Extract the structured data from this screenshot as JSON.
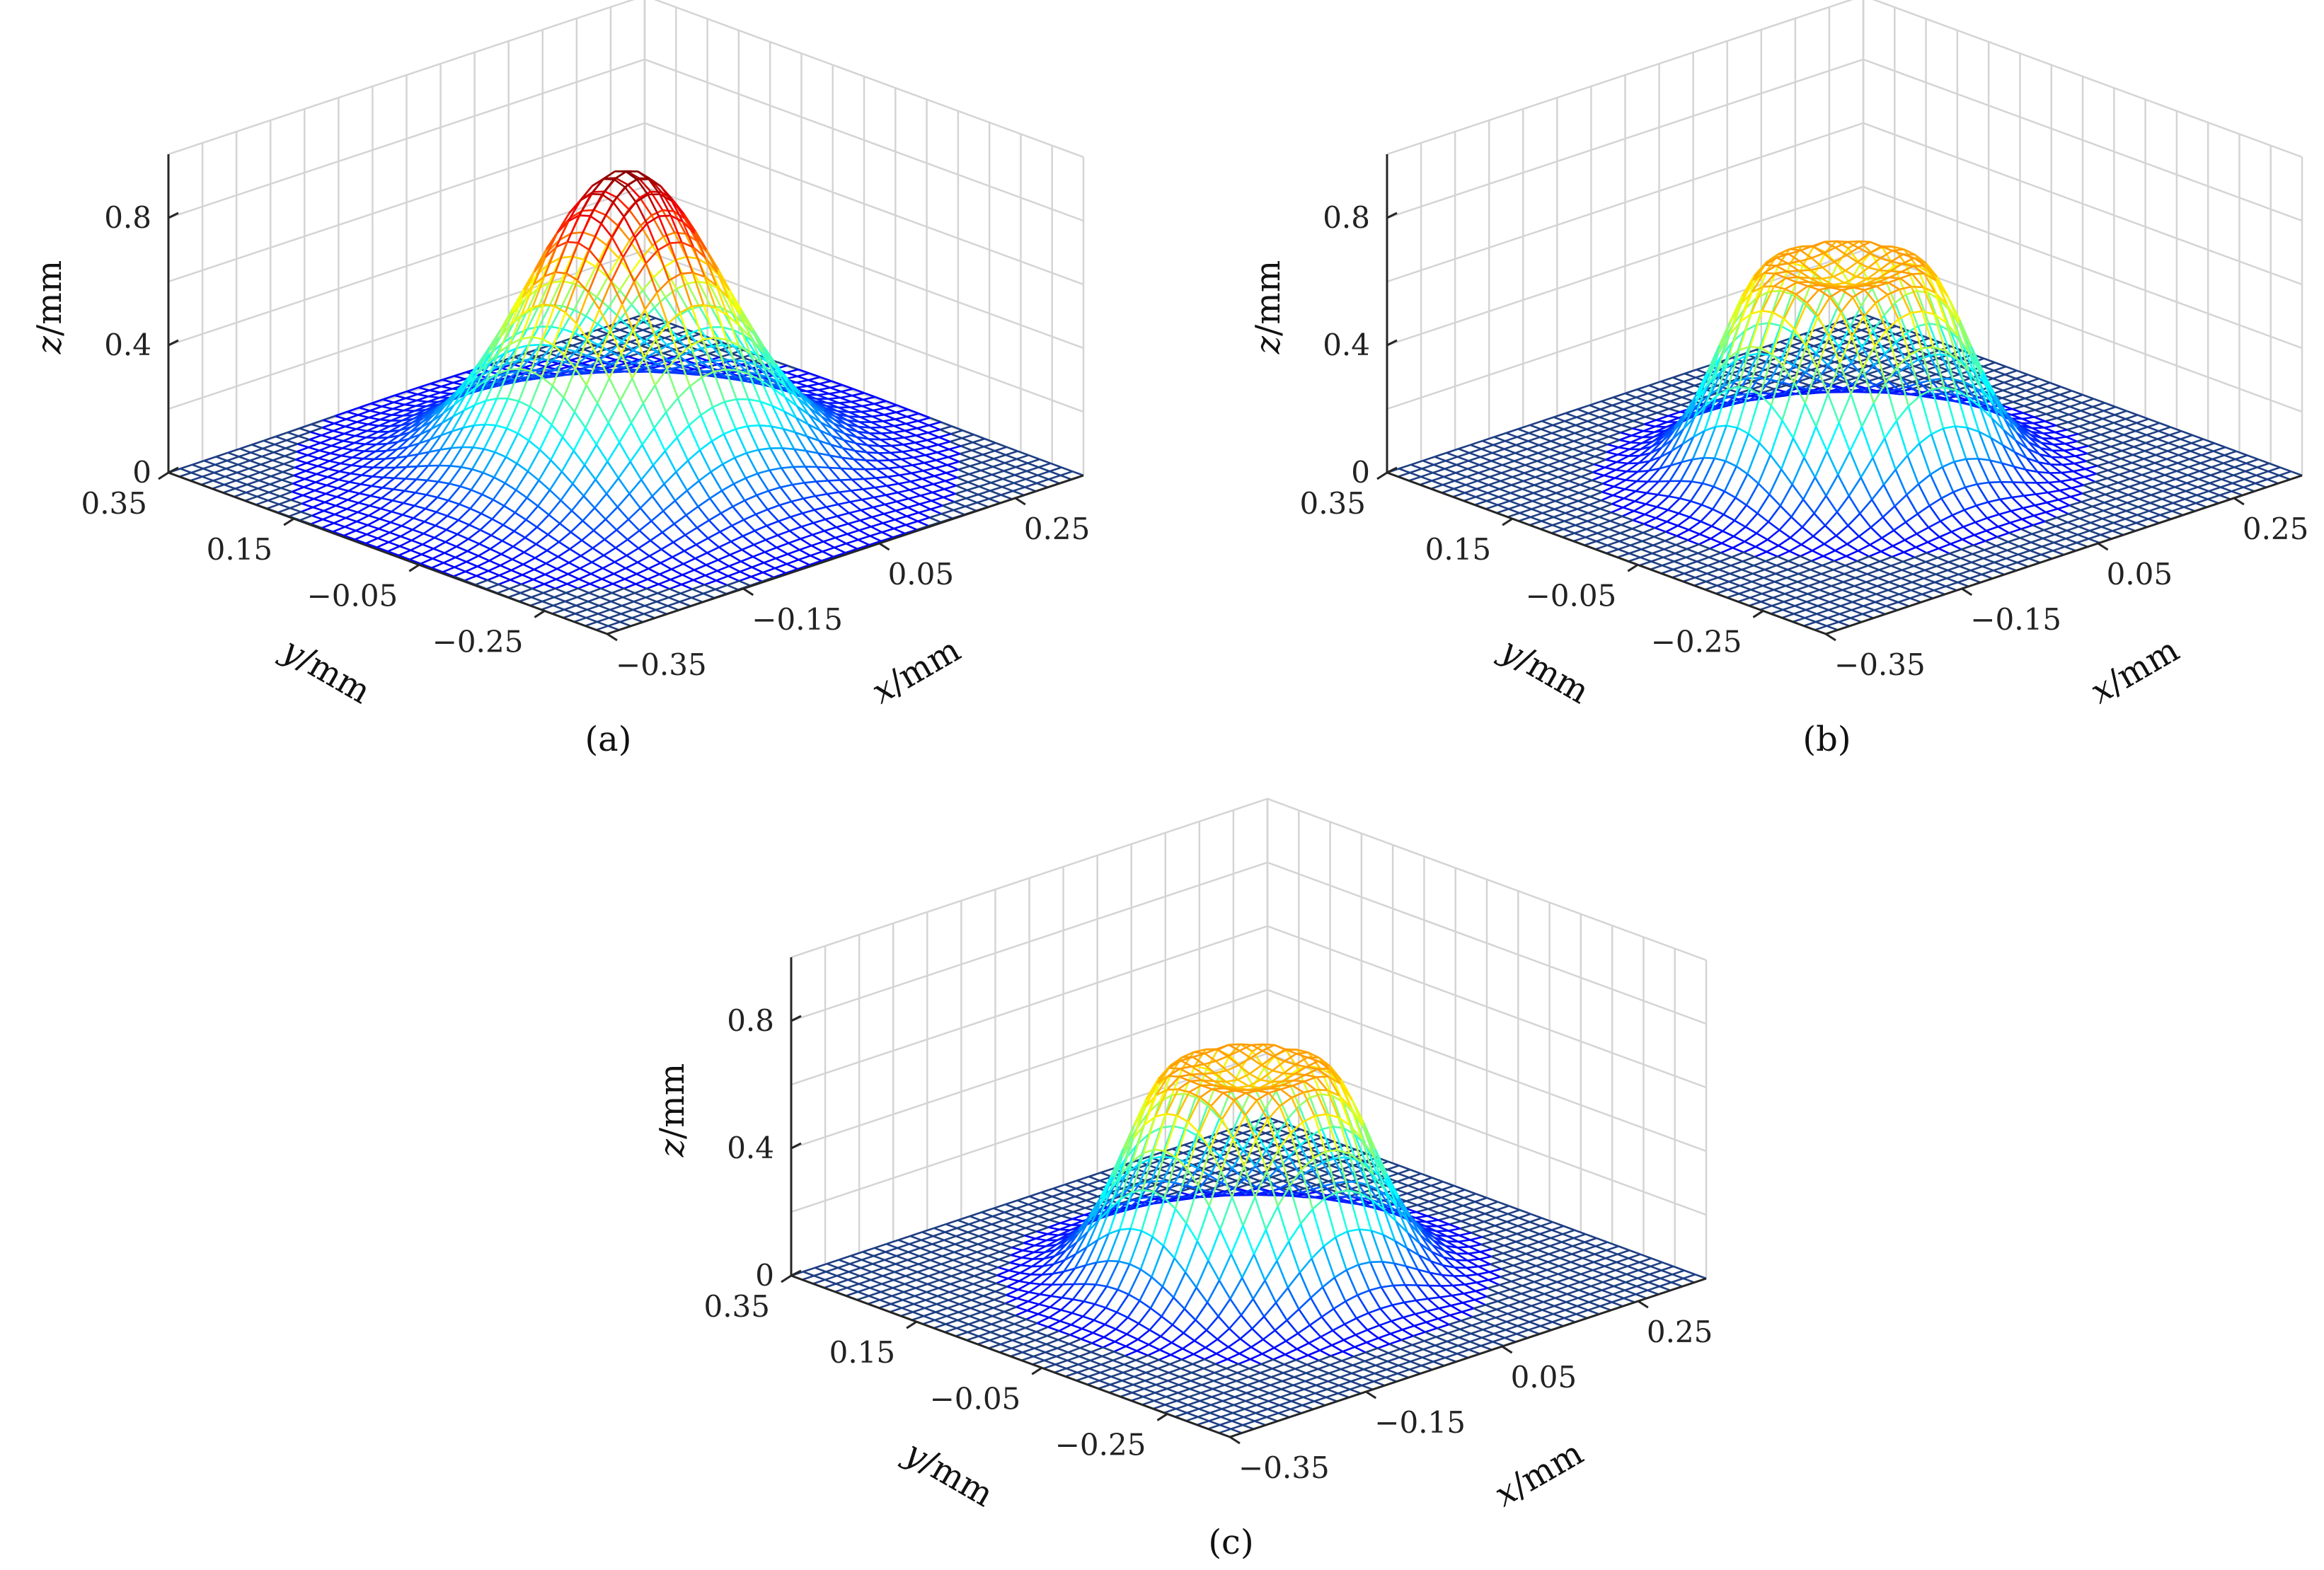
{
  "chart_data": [
    {
      "type": "surface",
      "caption": "(a)",
      "profile": "gaussian",
      "peak_z": 0.95,
      "xlabel": "x/mm",
      "ylabel": "y/mm",
      "zlabel": "z/mm",
      "xlim": [
        -0.35,
        0.35
      ],
      "ylim": [
        -0.35,
        0.35
      ],
      "zlim": [
        0,
        1.0
      ],
      "xticks": [
        "−0.35",
        "−0.15",
        "0.05",
        "0.25"
      ],
      "yticks": [
        "0.35",
        "0.15",
        "−0.05",
        "−0.25"
      ],
      "zticks": [
        "0",
        "0.4",
        "0.8"
      ],
      "grid": true,
      "colormap": "jet"
    },
    {
      "type": "surface",
      "caption": "(b)",
      "profile": "ring (flat-top with central dip)",
      "peak_z": 0.66,
      "center_z": 0.6,
      "xlabel": "x/mm",
      "ylabel": "y/mm",
      "zlabel": "z/mm",
      "xlim": [
        -0.35,
        0.35
      ],
      "ylim": [
        -0.35,
        0.35
      ],
      "zlim": [
        0,
        1.0
      ],
      "xticks": [
        "−0.35",
        "−0.15",
        "0.05",
        "0.25"
      ],
      "yticks": [
        "0.35",
        "0.15",
        "−0.05",
        "−0.25"
      ],
      "zticks": [
        "0",
        "0.4",
        "0.8"
      ],
      "grid": true,
      "colormap": "jet"
    },
    {
      "type": "surface",
      "caption": "(c)",
      "profile": "ring (flat-top with central dip)",
      "peak_z": 0.66,
      "center_z": 0.6,
      "xlabel": "x/mm",
      "ylabel": "y/mm",
      "zlabel": "z/mm",
      "xlim": [
        -0.35,
        0.35
      ],
      "ylim": [
        -0.35,
        0.35
      ],
      "zlim": [
        0,
        1.0
      ],
      "xticks": [
        "−0.35",
        "−0.15",
        "0.05",
        "0.25"
      ],
      "yticks": [
        "0.35",
        "0.15",
        "−0.05",
        "−0.25"
      ],
      "zticks": [
        "0",
        "0.4",
        "0.8"
      ],
      "grid": true,
      "colormap": "jet"
    }
  ]
}
